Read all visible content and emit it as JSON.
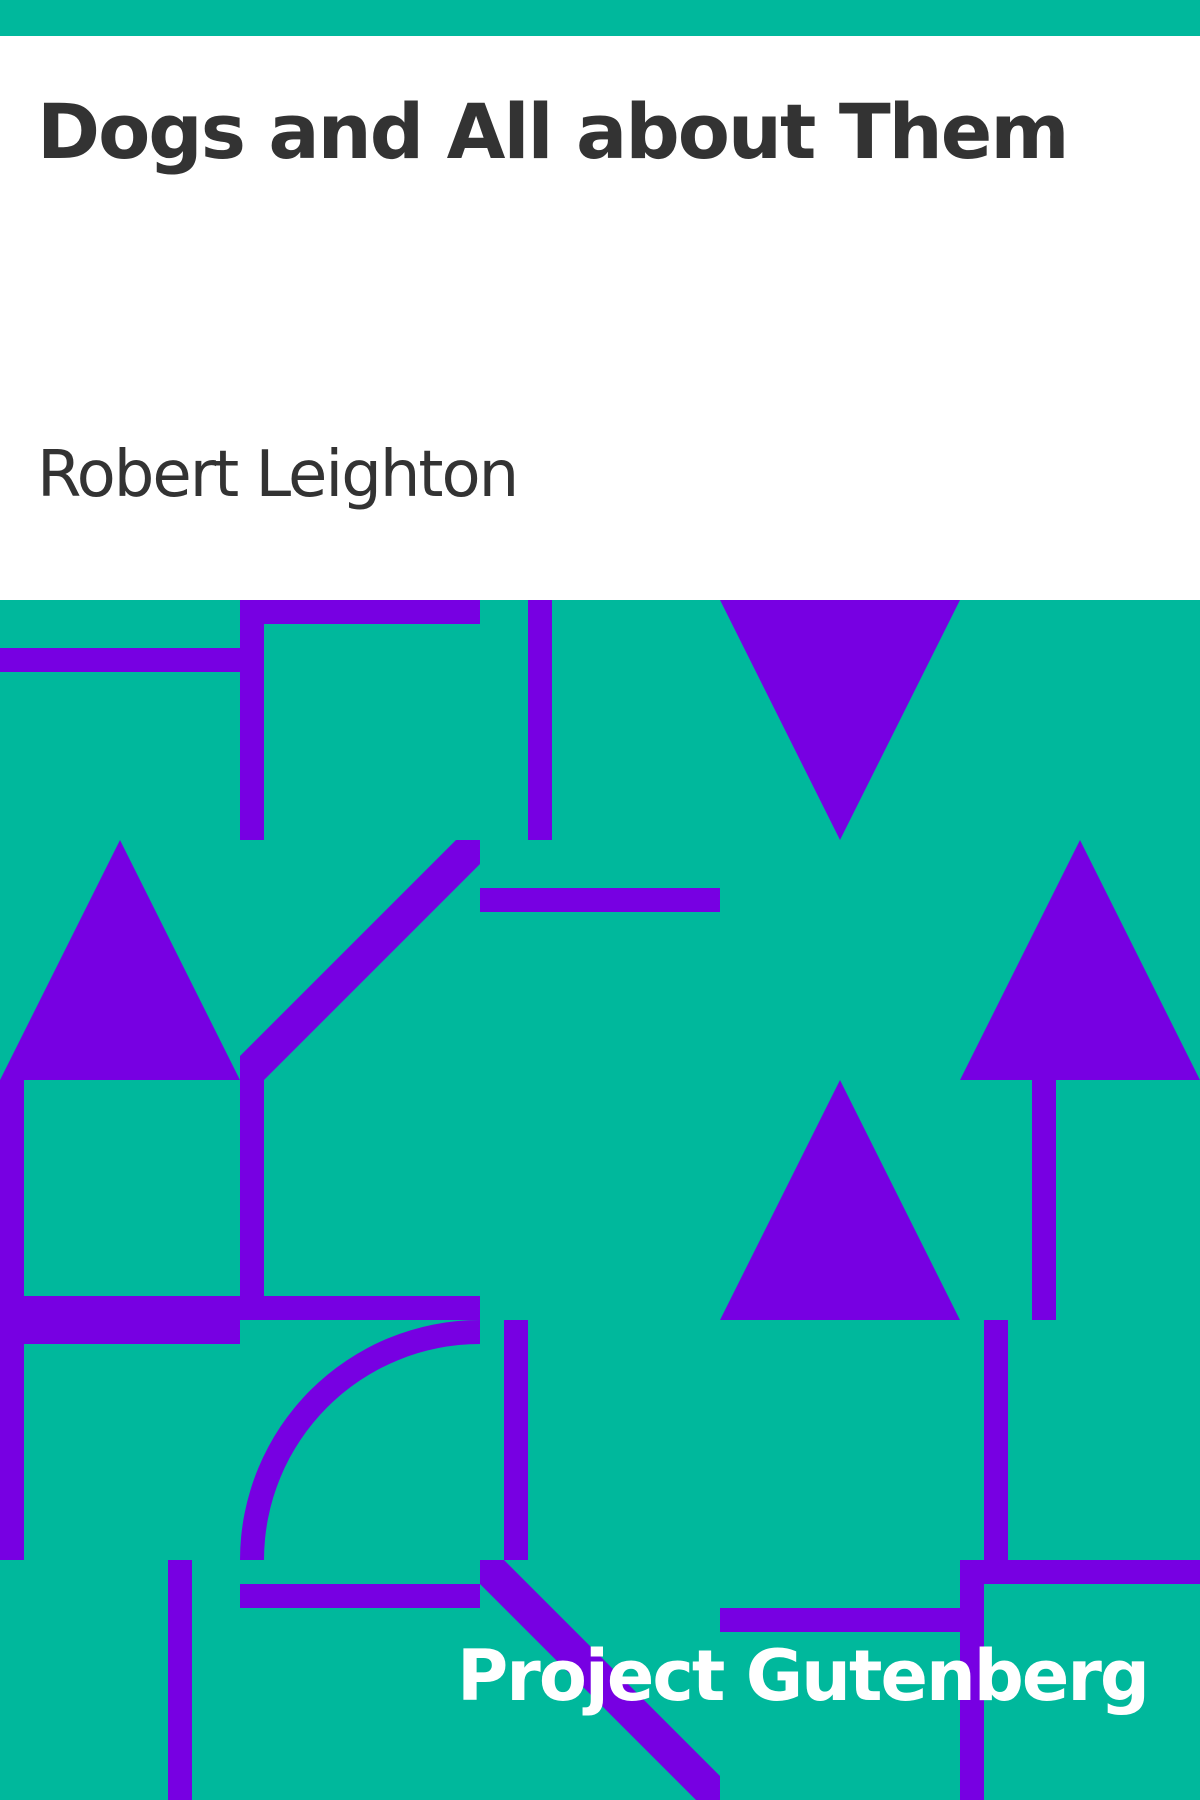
{
  "cover": {
    "title": "Dogs and All about Them",
    "author": "Robert Leighton",
    "publisher": "Project Gutenberg"
  },
  "colors": {
    "background": "#00b89c",
    "pattern": "#7700e2",
    "text_dark": "#333333",
    "text_light": "#ffffff"
  }
}
